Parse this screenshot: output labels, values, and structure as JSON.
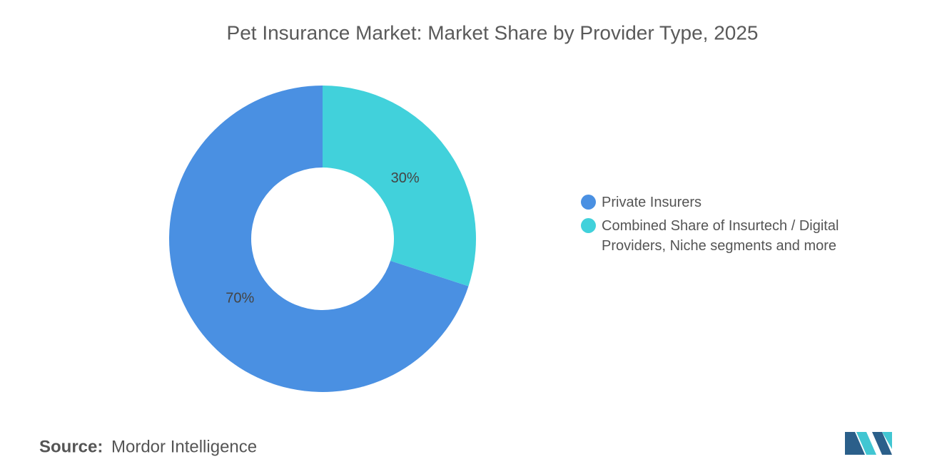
{
  "chart_data": {
    "type": "donut",
    "title": "Pet Insurance Market: Market Share by Provider Type, 2025",
    "categories": [
      "Private Insurers",
      "Combined Share of Insurtech / Digital Providers, Niche segments and more"
    ],
    "values": [
      70,
      30
    ],
    "value_labels": [
      "70%",
      "30%"
    ],
    "colors": [
      "#4a90e2",
      "#41d1db"
    ],
    "source_label": "Source:",
    "source": "Mordor Intelligence"
  }
}
